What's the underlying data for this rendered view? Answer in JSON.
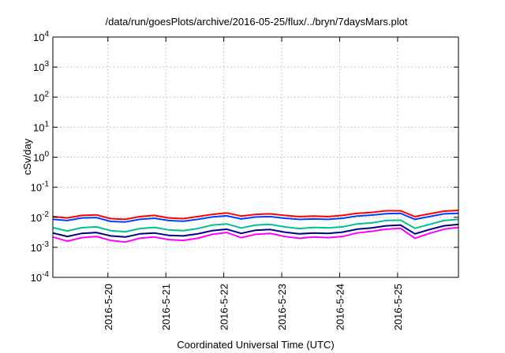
{
  "chart_data": {
    "type": "line",
    "title": "/data/run/goesPlots/archive/2016-05-25/flux/../bryn/7daysMars.plot",
    "xlabel": "Coordinated Universal Time (UTC)",
    "ylabel": "cSv/day",
    "yscale": "log",
    "ylim": [
      0.0001,
      10000
    ],
    "xlim": [
      0,
      7.0
    ],
    "grid": true,
    "y_ticks": [
      {
        "value": 0.0001,
        "mantissa": "10",
        "exp": "-4"
      },
      {
        "value": 0.001,
        "mantissa": "10",
        "exp": "-3"
      },
      {
        "value": 0.01,
        "mantissa": "10",
        "exp": "-2"
      },
      {
        "value": 0.1,
        "mantissa": "10",
        "exp": "-1"
      },
      {
        "value": 1,
        "mantissa": "10",
        "exp": "0"
      },
      {
        "value": 10,
        "mantissa": "10",
        "exp": "1"
      },
      {
        "value": 100,
        "mantissa": "10",
        "exp": "2"
      },
      {
        "value": 1000,
        "mantissa": "10",
        "exp": "3"
      },
      {
        "value": 10000,
        "mantissa": "10",
        "exp": "4"
      }
    ],
    "x_ticks": [
      {
        "value": 0.95,
        "label": "2016-5-20"
      },
      {
        "value": 1.95,
        "label": "2016-5-21"
      },
      {
        "value": 2.95,
        "label": "2016-5-22"
      },
      {
        "value": 3.95,
        "label": "2016-5-23"
      },
      {
        "value": 4.95,
        "label": "2016-5-24"
      },
      {
        "value": 5.95,
        "label": "2016-5-25"
      }
    ],
    "x": [
      0.0,
      0.25,
      0.5,
      0.75,
      1.0,
      1.25,
      1.5,
      1.75,
      2.0,
      2.25,
      2.5,
      2.75,
      3.0,
      3.25,
      3.5,
      3.75,
      4.0,
      4.25,
      4.5,
      4.75,
      5.0,
      5.25,
      5.5,
      5.75,
      6.0,
      6.25,
      6.5,
      6.75,
      7.0
    ],
    "series": [
      {
        "color": "#ff0000",
        "values": [
          0.0105,
          0.0095,
          0.0115,
          0.012,
          0.009,
          0.0085,
          0.0105,
          0.0115,
          0.0095,
          0.009,
          0.0105,
          0.0125,
          0.014,
          0.011,
          0.0125,
          0.013,
          0.0115,
          0.0105,
          0.011,
          0.0105,
          0.0115,
          0.0135,
          0.0145,
          0.0165,
          0.0165,
          0.0105,
          0.013,
          0.016,
          0.017
        ]
      },
      {
        "color": "#0040ff",
        "values": [
          0.0085,
          0.0078,
          0.0095,
          0.0098,
          0.0073,
          0.007,
          0.0085,
          0.0093,
          0.0078,
          0.0074,
          0.0085,
          0.0102,
          0.0112,
          0.0088,
          0.0102,
          0.0105,
          0.0093,
          0.0085,
          0.0088,
          0.0085,
          0.0093,
          0.011,
          0.0118,
          0.0132,
          0.0135,
          0.0085,
          0.0105,
          0.013,
          0.0135
        ]
      },
      {
        "color": "#00c090",
        "values": [
          0.0045,
          0.0035,
          0.0045,
          0.0048,
          0.0036,
          0.0033,
          0.0042,
          0.0046,
          0.0038,
          0.0036,
          0.0042,
          0.0055,
          0.006,
          0.0044,
          0.0055,
          0.0058,
          0.0048,
          0.0042,
          0.0046,
          0.0044,
          0.0048,
          0.006,
          0.0065,
          0.0078,
          0.008,
          0.0043,
          0.0058,
          0.0078,
          0.0085
        ]
      },
      {
        "color": "#000080",
        "values": [
          0.003,
          0.0023,
          0.0029,
          0.0031,
          0.0024,
          0.0022,
          0.0028,
          0.003,
          0.0025,
          0.0024,
          0.0028,
          0.0036,
          0.004,
          0.0029,
          0.0037,
          0.0039,
          0.0032,
          0.0028,
          0.003,
          0.0029,
          0.0032,
          0.004,
          0.0044,
          0.0052,
          0.0055,
          0.0028,
          0.0039,
          0.0052,
          0.0058
        ]
      },
      {
        "color": "#ff00ff",
        "values": [
          0.0022,
          0.0016,
          0.0021,
          0.0023,
          0.0017,
          0.0015,
          0.002,
          0.0022,
          0.0018,
          0.0017,
          0.002,
          0.0027,
          0.0031,
          0.0021,
          0.0027,
          0.0029,
          0.0023,
          0.002,
          0.0022,
          0.0021,
          0.0023,
          0.003,
          0.0034,
          0.004,
          0.0043,
          0.002,
          0.0029,
          0.004,
          0.0046
        ]
      }
    ]
  }
}
